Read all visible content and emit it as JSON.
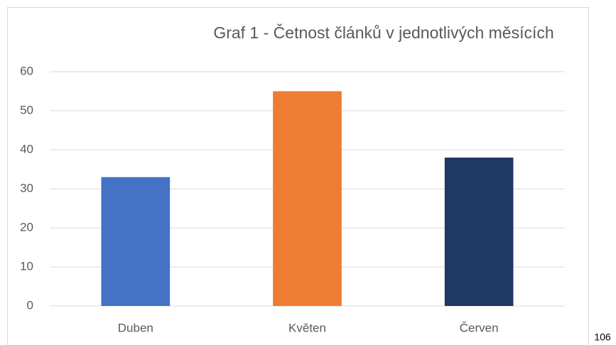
{
  "chart_data": {
    "type": "bar",
    "title": "Graf 1 - Četnost článků v jednotlivých měsících",
    "categories": [
      "Duben",
      "Květen",
      "Červen"
    ],
    "values": [
      33,
      55,
      38
    ],
    "colors": [
      "#4472c4",
      "#ed7d31",
      "#203864"
    ],
    "ylim": [
      0,
      60
    ],
    "yticks": [
      0,
      10,
      20,
      30,
      40,
      50,
      60
    ],
    "grid": true
  },
  "page_number": 106
}
